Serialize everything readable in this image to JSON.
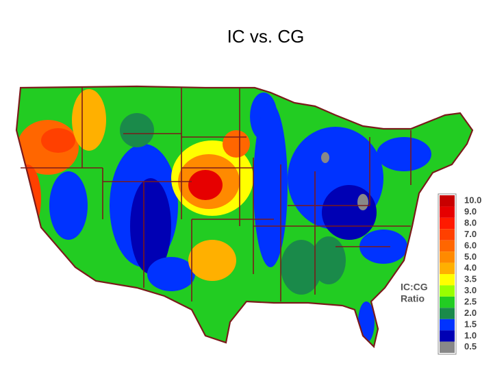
{
  "title": "IC vs. CG",
  "legend": {
    "title": [
      "IC:CG",
      "Ratio"
    ],
    "bins": [
      {
        "label": "10.0",
        "color": "#c80000"
      },
      {
        "label": "9.0",
        "color": "#e60000"
      },
      {
        "label": "8.0",
        "color": "#ff1a00"
      },
      {
        "label": "7.0",
        "color": "#ff4000"
      },
      {
        "label": "6.0",
        "color": "#ff6600"
      },
      {
        "label": "5.0",
        "color": "#ff8a00"
      },
      {
        "label": "4.0",
        "color": "#ffb000"
      },
      {
        "label": "3.5",
        "color": "#ffff00"
      },
      {
        "label": "3.0",
        "color": "#99ff00"
      },
      {
        "label": "2.5",
        "color": "#22cc22"
      },
      {
        "label": "2.0",
        "color": "#1a8a4a"
      },
      {
        "label": "1.5",
        "color": "#0033ff"
      },
      {
        "label": "1.0",
        "color": "#0000b4"
      },
      {
        "label": "0.5",
        "color": "#888888"
      }
    ]
  }
}
